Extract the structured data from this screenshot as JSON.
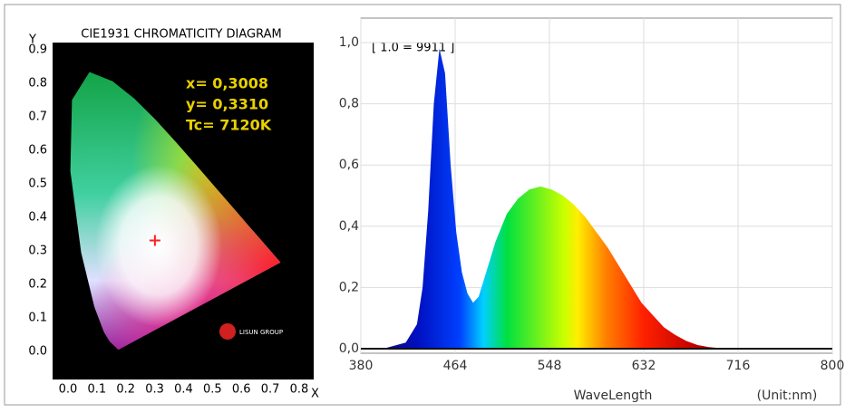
{
  "chart_data": [
    {
      "type": "scatter",
      "title": "CIE1931 CHROMATICITY DIAGRAM",
      "xlabel": "X",
      "ylabel": "Y",
      "x": [
        0.3008
      ],
      "values": [
        0.331
      ],
      "color": "#ff2020",
      "xlim": [
        0,
        0.8
      ],
      "ylim": [
        0,
        0.9
      ],
      "xticks": [
        {
          "value": 0,
          "label": "0.0"
        },
        0.1,
        0.2,
        0.3,
        0.4,
        0.5,
        0.6,
        0.7,
        0.8
      ],
      "yticks": [
        {
          "value": 0,
          "label": "0.0"
        },
        0.1,
        0.2,
        0.3,
        0.4,
        0.5,
        0.6,
        0.7,
        0.8,
        0.9
      ],
      "annotations": [
        "x= 0,3008",
        "y= 0,3310",
        "Tc= 7120K"
      ],
      "logo_text": "LISUN GROUP"
    },
    {
      "type": "area",
      "xlabel": "WaveLength",
      "x_unit_label": "(Unit:nm)",
      "annotation": "[ 1.0 = 9911 ]",
      "x": [
        380,
        400,
        420,
        430,
        435,
        440,
        445,
        450,
        455,
        460,
        465,
        470,
        475,
        480,
        485,
        490,
        500,
        510,
        520,
        530,
        540,
        550,
        560,
        570,
        580,
        590,
        600,
        610,
        620,
        630,
        640,
        650,
        660,
        670,
        680,
        690,
        700,
        720,
        760,
        800
      ],
      "values": [
        0,
        0,
        0.02,
        0.08,
        0.2,
        0.45,
        0.8,
        0.98,
        0.9,
        0.6,
        0.38,
        0.25,
        0.18,
        0.15,
        0.17,
        0.23,
        0.35,
        0.44,
        0.49,
        0.52,
        0.53,
        0.52,
        0.5,
        0.47,
        0.43,
        0.38,
        0.33,
        0.27,
        0.21,
        0.15,
        0.11,
        0.07,
        0.045,
        0.025,
        0.012,
        0.005,
        0.002,
        0,
        0,
        0
      ],
      "xlim": [
        380,
        800
      ],
      "ylim": [
        0,
        1.0
      ],
      "xticks": [
        380,
        464,
        548,
        632,
        716,
        800
      ],
      "yticks": [
        {
          "value": 0,
          "label": "0,0"
        },
        {
          "value": 0.2,
          "label": "0,2"
        },
        {
          "value": 0.4,
          "label": "0,4"
        },
        {
          "value": 0.6,
          "label": "0,6"
        },
        {
          "value": 0.8,
          "label": "0,8"
        },
        {
          "value": 1.0,
          "label": "1,0"
        }
      ],
      "grid": true
    }
  ]
}
